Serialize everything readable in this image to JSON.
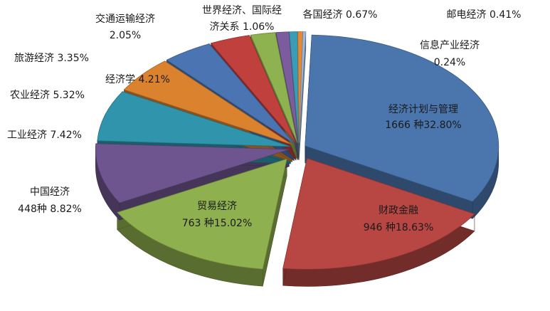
{
  "chart_data": {
    "type": "pie",
    "title": "",
    "exploded": true,
    "three_d": true,
    "slices": [
      {
        "label": "经济计划与管理",
        "count_label": "1666 种",
        "percent_label": "32.80%",
        "value": 32.8,
        "color": "#4A76AD"
      },
      {
        "label": "财政金融",
        "count_label": "946 种",
        "percent_label": "18.63%",
        "value": 18.63,
        "color": "#B84744"
      },
      {
        "label": "贸易经济",
        "count_label": "763 种",
        "percent_label": "15.02%",
        "value": 15.02,
        "color": "#8FB04E"
      },
      {
        "label": "中国经济",
        "count_label": "448种",
        "percent_label": "8.82%",
        "value": 8.82,
        "color": "#6E5590"
      },
      {
        "label": "工业经济",
        "count_label": "",
        "percent_label": "7.42%",
        "value": 7.42,
        "color": "#2F94AC"
      },
      {
        "label": "农业经济",
        "count_label": "",
        "percent_label": "5.32%",
        "value": 5.32,
        "color": "#DB822E"
      },
      {
        "label": "经济学",
        "count_label": "",
        "percent_label": "4.21%",
        "value": 4.21,
        "color": "#4A74B2"
      },
      {
        "label": "旅游经济",
        "count_label": "",
        "percent_label": "3.35%",
        "value": 3.35,
        "color": "#C0403E"
      },
      {
        "label": "交通运输经济",
        "count_label": "",
        "percent_label": "2.05%",
        "value": 2.05,
        "color": "#8DB24F"
      },
      {
        "label": "世界经济、国际经济关系",
        "count_label": "",
        "percent_label": "1.06%",
        "value": 1.06,
        "color": "#7B5D9E"
      },
      {
        "label": "各国经济",
        "count_label": "",
        "percent_label": "0.67%",
        "value": 0.67,
        "color": "#3A9DB8"
      },
      {
        "label": "邮电经济",
        "count_label": "",
        "percent_label": "0.41%",
        "value": 0.41,
        "color": "#E48A34"
      },
      {
        "label": "信息产业经济",
        "count_label": "",
        "percent_label": "0.24%",
        "value": 0.24,
        "color": "#9DB8DA"
      }
    ]
  }
}
